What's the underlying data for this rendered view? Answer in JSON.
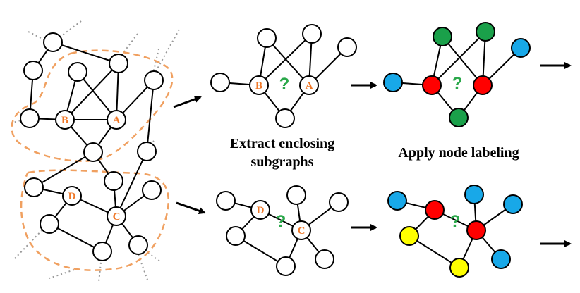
{
  "captions": {
    "extract_line1": "Extract enclosing",
    "extract_line2": "subgraphs",
    "labeling": "Apply node labeling"
  },
  "symbols": {
    "question": "?"
  },
  "target_labels": {
    "A": "A",
    "B": "B",
    "C": "C",
    "D": "D"
  },
  "colors": {
    "target_text": "#f07828",
    "question": "#2aa84a",
    "dashed_region": "#f0a060",
    "node_fill": "#ffffff",
    "label_red": "#ff0000",
    "label_green": "#1aa04a",
    "label_blue": "#18a8e8",
    "label_yellow": "#ffff00",
    "edge": "#000000",
    "dotted_edge": "#999999"
  }
}
